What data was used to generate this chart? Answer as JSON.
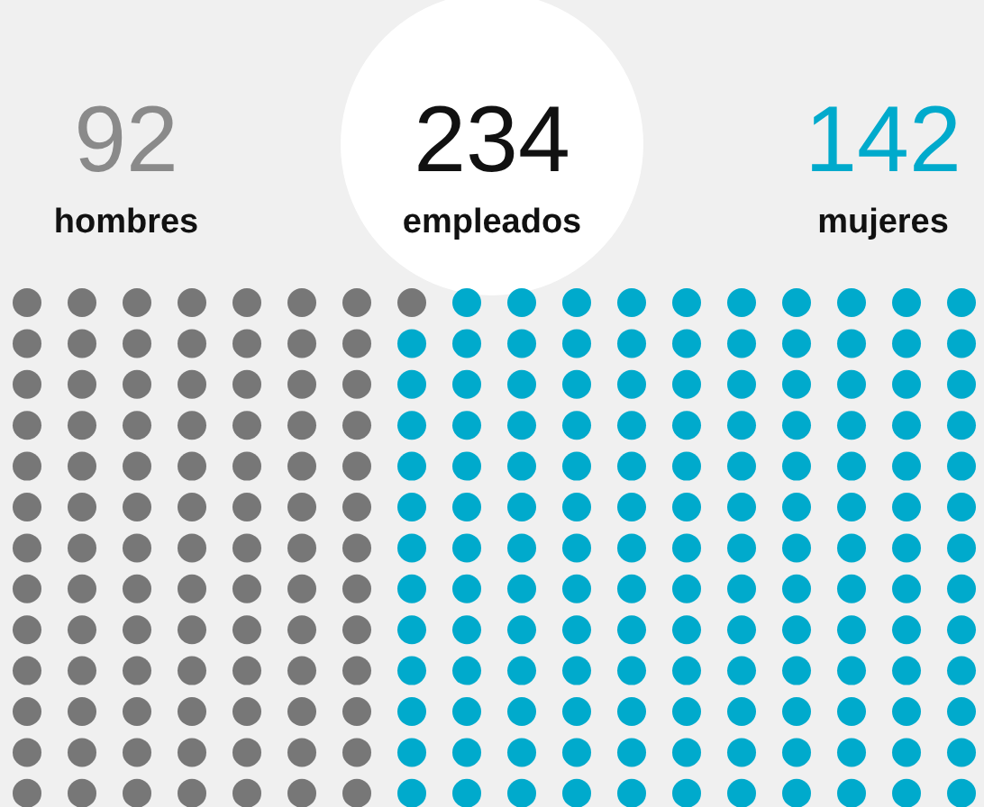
{
  "chart_data": {
    "type": "other",
    "title": "234",
    "subtitle": "empleados",
    "categories": [
      "hombres",
      "mujeres"
    ],
    "values": [
      92,
      142
    ],
    "colors": [
      "#777777",
      "#00aacc"
    ],
    "data_labels": true
  }
}
